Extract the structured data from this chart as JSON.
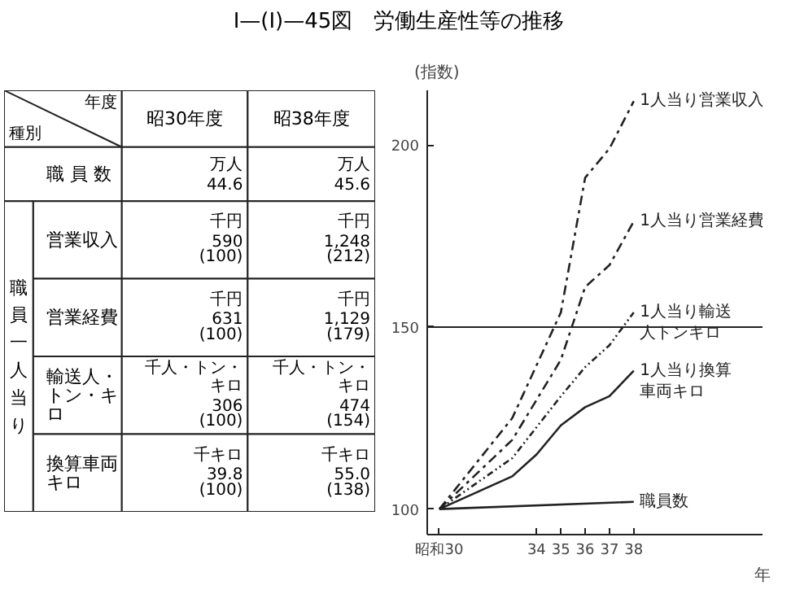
{
  "chart_data": [
    {
      "type": "other",
      "title": "I—(I)—45図　労働生産性等の推移",
      "categories": [
        "昭30年度",
        "昭38年度"
      ],
      "y_categories": [
        "職 員 数",
        "営業収入",
        "営業経費",
        "輸送人・トン・キロ",
        "換算車両キロ"
      ],
      "cell_labels": [
        [
          [
            "万人",
            "44.6"
          ],
          [
            "万人",
            "45.6"
          ]
        ],
        [
          [
            "千円",
            "590",
            "(100)"
          ],
          [
            "千円",
            "1,248",
            "(212)"
          ]
        ],
        [
          [
            "千円",
            "631",
            "(100)"
          ],
          [
            "千円",
            "1,129",
            "(179)"
          ]
        ],
        [
          [
            "千人・トン・キロ",
            "306",
            "(100)"
          ],
          [
            "千人・トン・キロ",
            "474",
            "(154)"
          ]
        ],
        [
          [
            "千キロ",
            "39.8",
            "(100)"
          ],
          [
            "千キロ",
            "55.0",
            "(138)"
          ]
        ]
      ],
      "annotations": [
        "年度",
        "種別",
        "職員一人当り"
      ]
    },
    {
      "type": "line",
      "ylabel": "(指数)",
      "xlabel": "年",
      "xlim": [
        29.5,
        43.3
      ],
      "ylim": [
        93,
        215
      ],
      "xticks": [
        {
          "value": 30,
          "label": "昭和30"
        },
        34,
        35,
        36,
        37,
        38
      ],
      "yticks": [
        100,
        150,
        200
      ],
      "grid": false,
      "legend": false,
      "marker": "none",
      "ref_lines": [
        {
          "axis": "y",
          "value": 150,
          "color": "#222222"
        }
      ],
      "series": [
        {
          "name": "1人当り営業収入",
          "color": "#222222",
          "line_style": "dashed",
          "x": [
            30,
            33,
            35,
            36,
            37,
            38
          ],
          "values": [
            100,
            125,
            154,
            191,
            199,
            212
          ]
        },
        {
          "name": "1人当り営業経費",
          "color": "#222222",
          "line_style": "dashed",
          "x": [
            30,
            33,
            35,
            36,
            37,
            38
          ],
          "values": [
            100,
            119,
            141,
            161,
            167,
            179
          ]
        },
        {
          "name": "1人当り輸送人トンキロ",
          "color": "#222222",
          "line_style": "dotted",
          "x": [
            30,
            33,
            35,
            36,
            37,
            38
          ],
          "values": [
            100,
            114,
            131,
            139,
            145,
            154
          ]
        },
        {
          "name": "1人当り換算車両キロ",
          "color": "#222222",
          "line_style": "solid",
          "x": [
            30,
            33,
            34,
            35,
            36,
            37,
            38
          ],
          "values": [
            100,
            109,
            115,
            123,
            128,
            131,
            138
          ]
        },
        {
          "name": "職員数",
          "color": "#222222",
          "line_style": "solid",
          "x": [
            30,
            38
          ],
          "values": [
            100,
            102
          ]
        }
      ]
    }
  ]
}
